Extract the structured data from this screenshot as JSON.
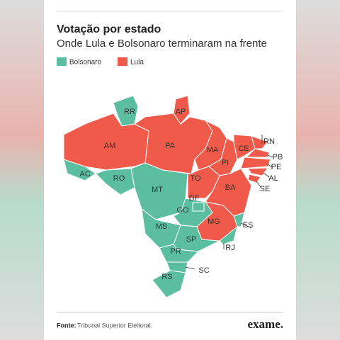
{
  "header": {
    "title": "Votação por estado",
    "subtitle": "Onde Lula e Bolsonaro terminaram na frente"
  },
  "legend": [
    {
      "label": "Bolsonaro",
      "color": "#5bbf9f",
      "states": [
        "RR",
        "AC",
        "RO",
        "MT",
        "MS",
        "GO",
        "DF",
        "SP",
        "PR",
        "SC",
        "RS",
        "RJ",
        "ES"
      ]
    },
    {
      "label": "Lula",
      "color": "#f05a4a",
      "states": [
        "AM",
        "PA",
        "AP",
        "MA",
        "PI",
        "CE",
        "RN",
        "PB",
        "PE",
        "AL",
        "SE",
        "BA",
        "TO",
        "MG"
      ]
    }
  ],
  "footer": {
    "source_label": "Fonte:",
    "source": "Tribunal Superior Eleitoral.",
    "logo": "exame."
  }
}
